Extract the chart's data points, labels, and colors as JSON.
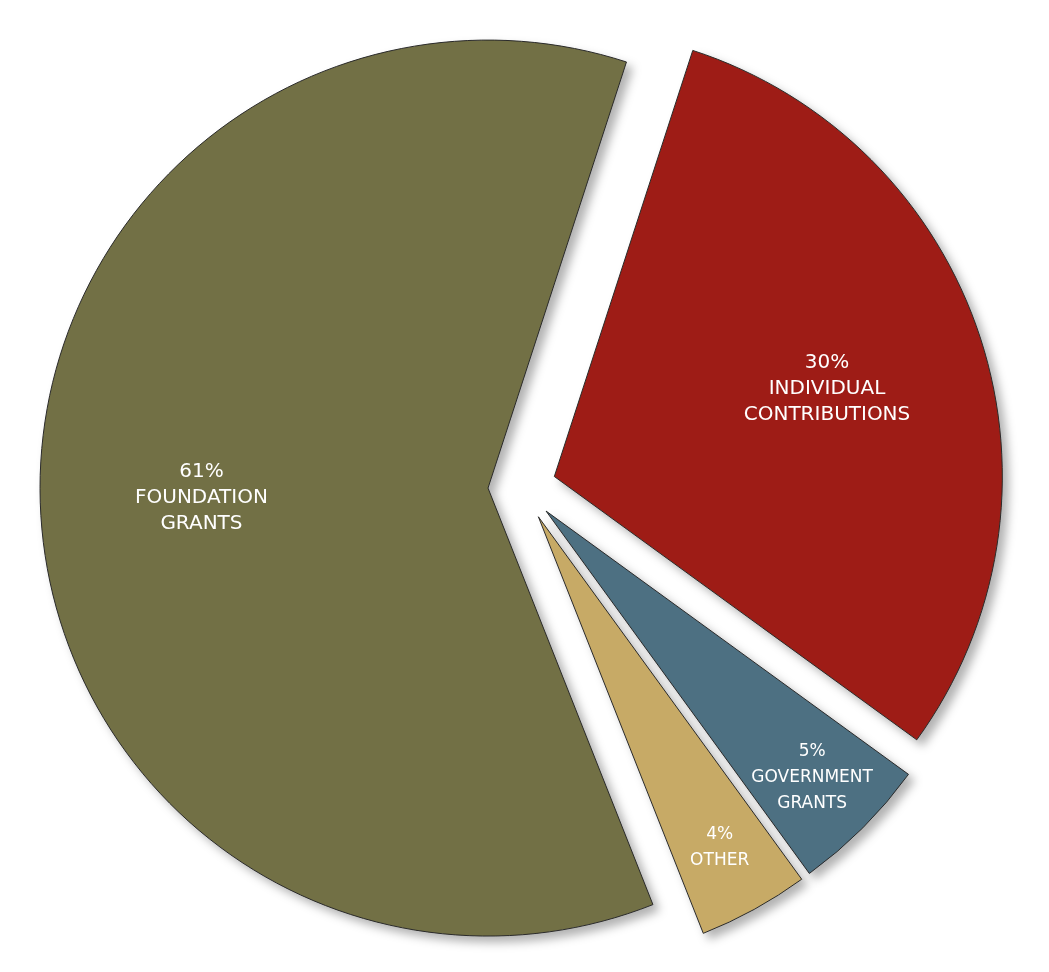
{
  "chart_data": {
    "type": "pie",
    "categories": [
      "INDIVIDUAL CONTRIBUTIONS",
      "GOVERNMENT GRANTS",
      "OTHER",
      "FOUNDATION GRANTS"
    ],
    "values": [
      30,
      5,
      4,
      61
    ],
    "colors": [
      "#9e1f14",
      "#4d7082",
      "#c7aa66",
      "#727044"
    ],
    "value_labels": [
      "30%",
      "5%",
      "4%",
      "61%"
    ]
  }
}
